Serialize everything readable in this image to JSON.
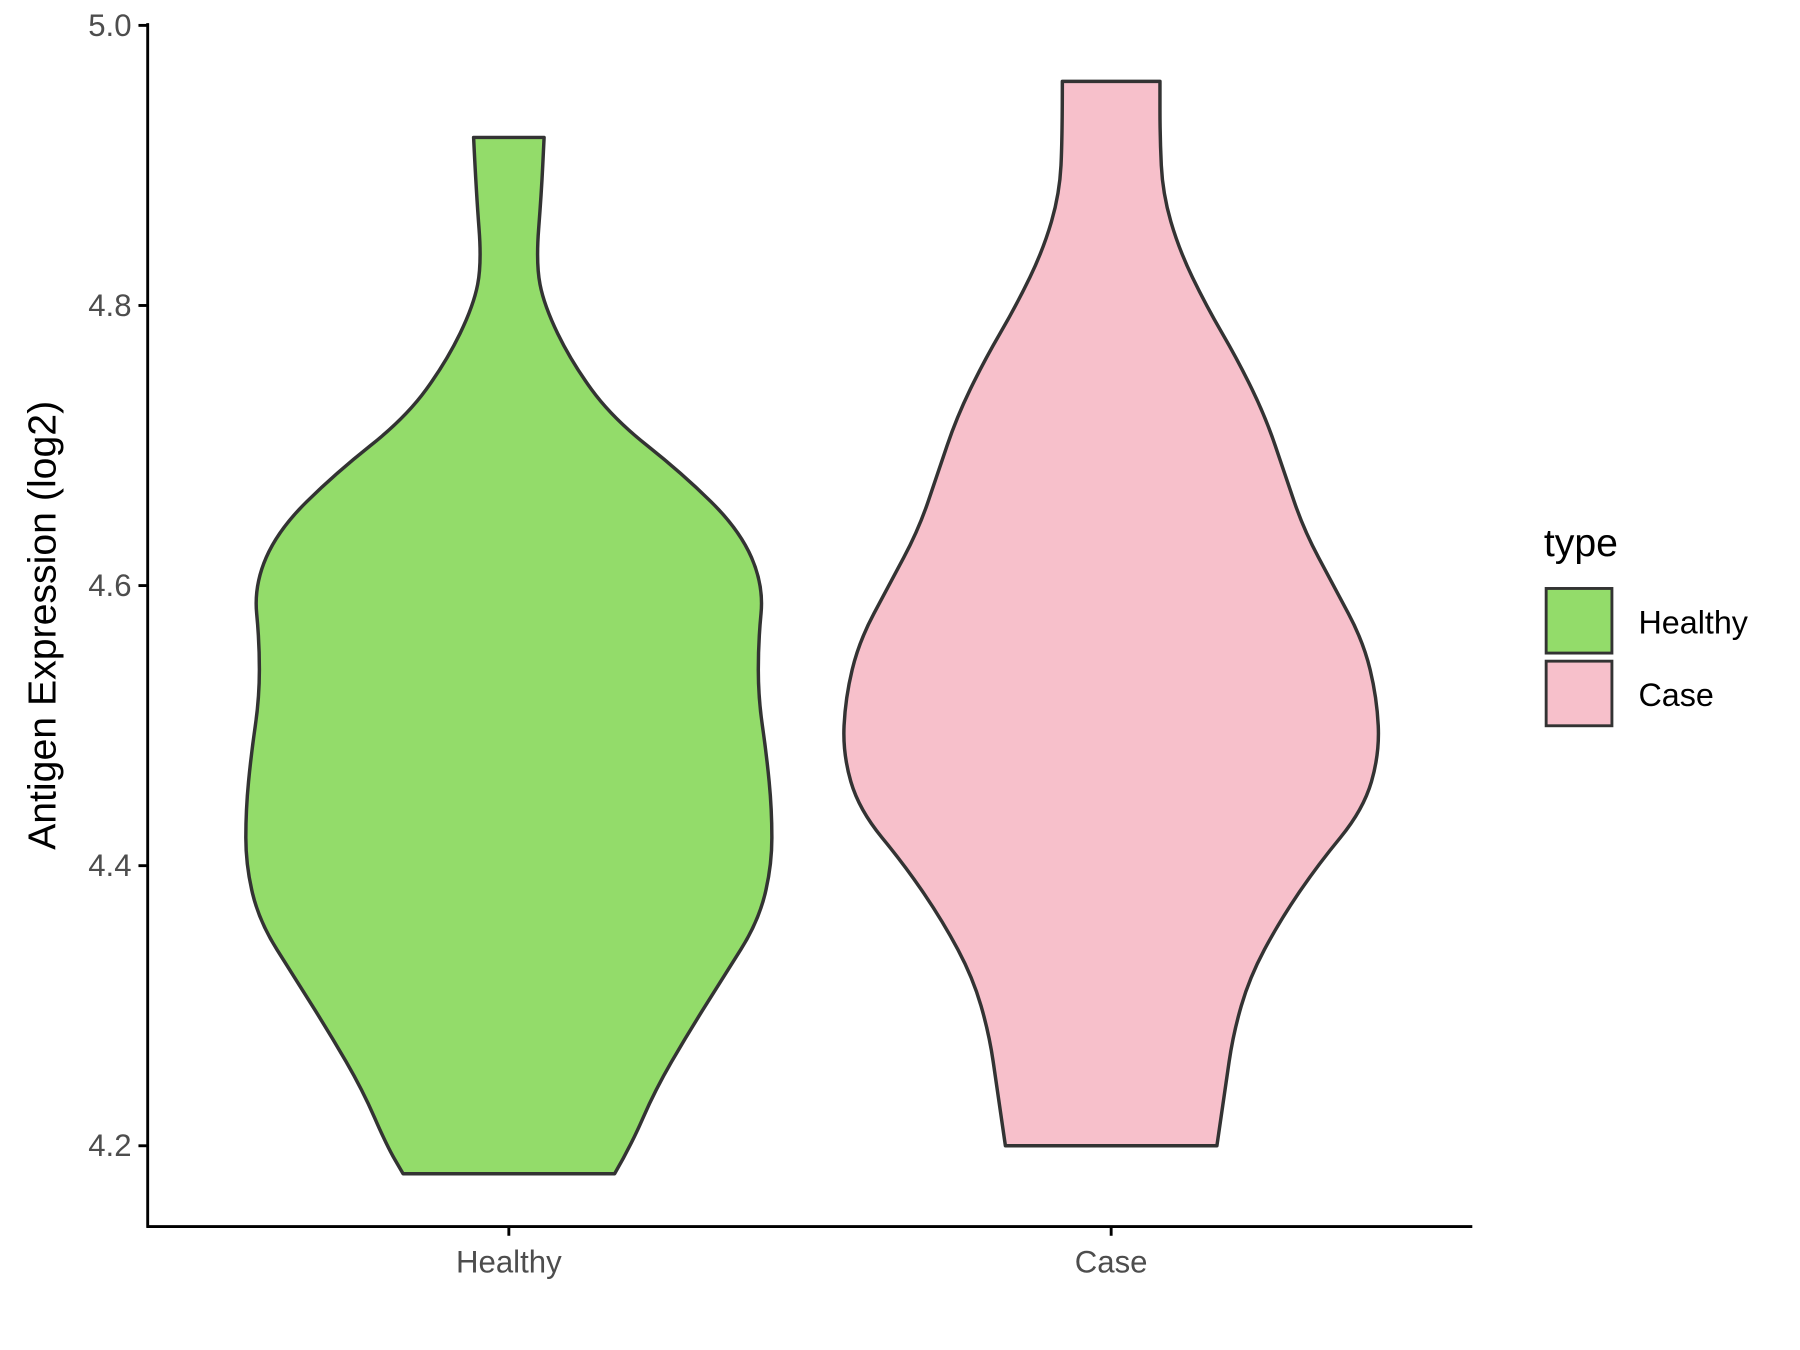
{
  "chart_data": {
    "type": "violin",
    "title": "",
    "xlabel": "",
    "ylabel": "Antigen Expression (log2)",
    "ylim": [
      4.142,
      5.0
    ],
    "yticks": [
      "4.2",
      "4.4",
      "4.6",
      "4.8",
      "5.0"
    ],
    "ytick_values": [
      4.2,
      4.4,
      4.6,
      4.8,
      5.0
    ],
    "categories": [
      "Healthy",
      "Case"
    ],
    "grid": false,
    "legend": {
      "title": "type",
      "position": "right",
      "entries": [
        "Healthy",
        "Case"
      ]
    },
    "colors": {
      "Healthy": "#93DC6A",
      "Case": "#F7C0CB",
      "outline": "#333333"
    },
    "series": [
      {
        "name": "Healthy",
        "y": [
          4.18,
          4.2,
          4.24,
          4.28,
          4.32,
          4.36,
          4.4,
          4.44,
          4.48,
          4.52,
          4.56,
          4.6,
          4.64,
          4.68,
          4.72,
          4.76,
          4.8,
          4.83,
          4.88,
          4.92
        ],
        "relative_width": [
          0.39,
          0.45,
          0.54,
          0.66,
          0.79,
          0.92,
          0.97,
          0.97,
          0.95,
          0.92,
          0.92,
          0.94,
          0.85,
          0.64,
          0.38,
          0.23,
          0.13,
          0.1,
          0.12,
          0.13
        ]
      },
      {
        "name": "Case",
        "y": [
          4.2,
          4.24,
          4.28,
          4.32,
          4.36,
          4.4,
          4.44,
          4.48,
          4.52,
          4.56,
          4.6,
          4.64,
          4.68,
          4.72,
          4.76,
          4.8,
          4.84,
          4.88,
          4.92,
          4.96
        ],
        "relative_width": [
          0.39,
          0.42,
          0.45,
          0.51,
          0.62,
          0.76,
          0.93,
          0.99,
          0.98,
          0.93,
          0.82,
          0.71,
          0.64,
          0.57,
          0.47,
          0.35,
          0.25,
          0.19,
          0.18,
          0.18
        ]
      }
    ]
  }
}
